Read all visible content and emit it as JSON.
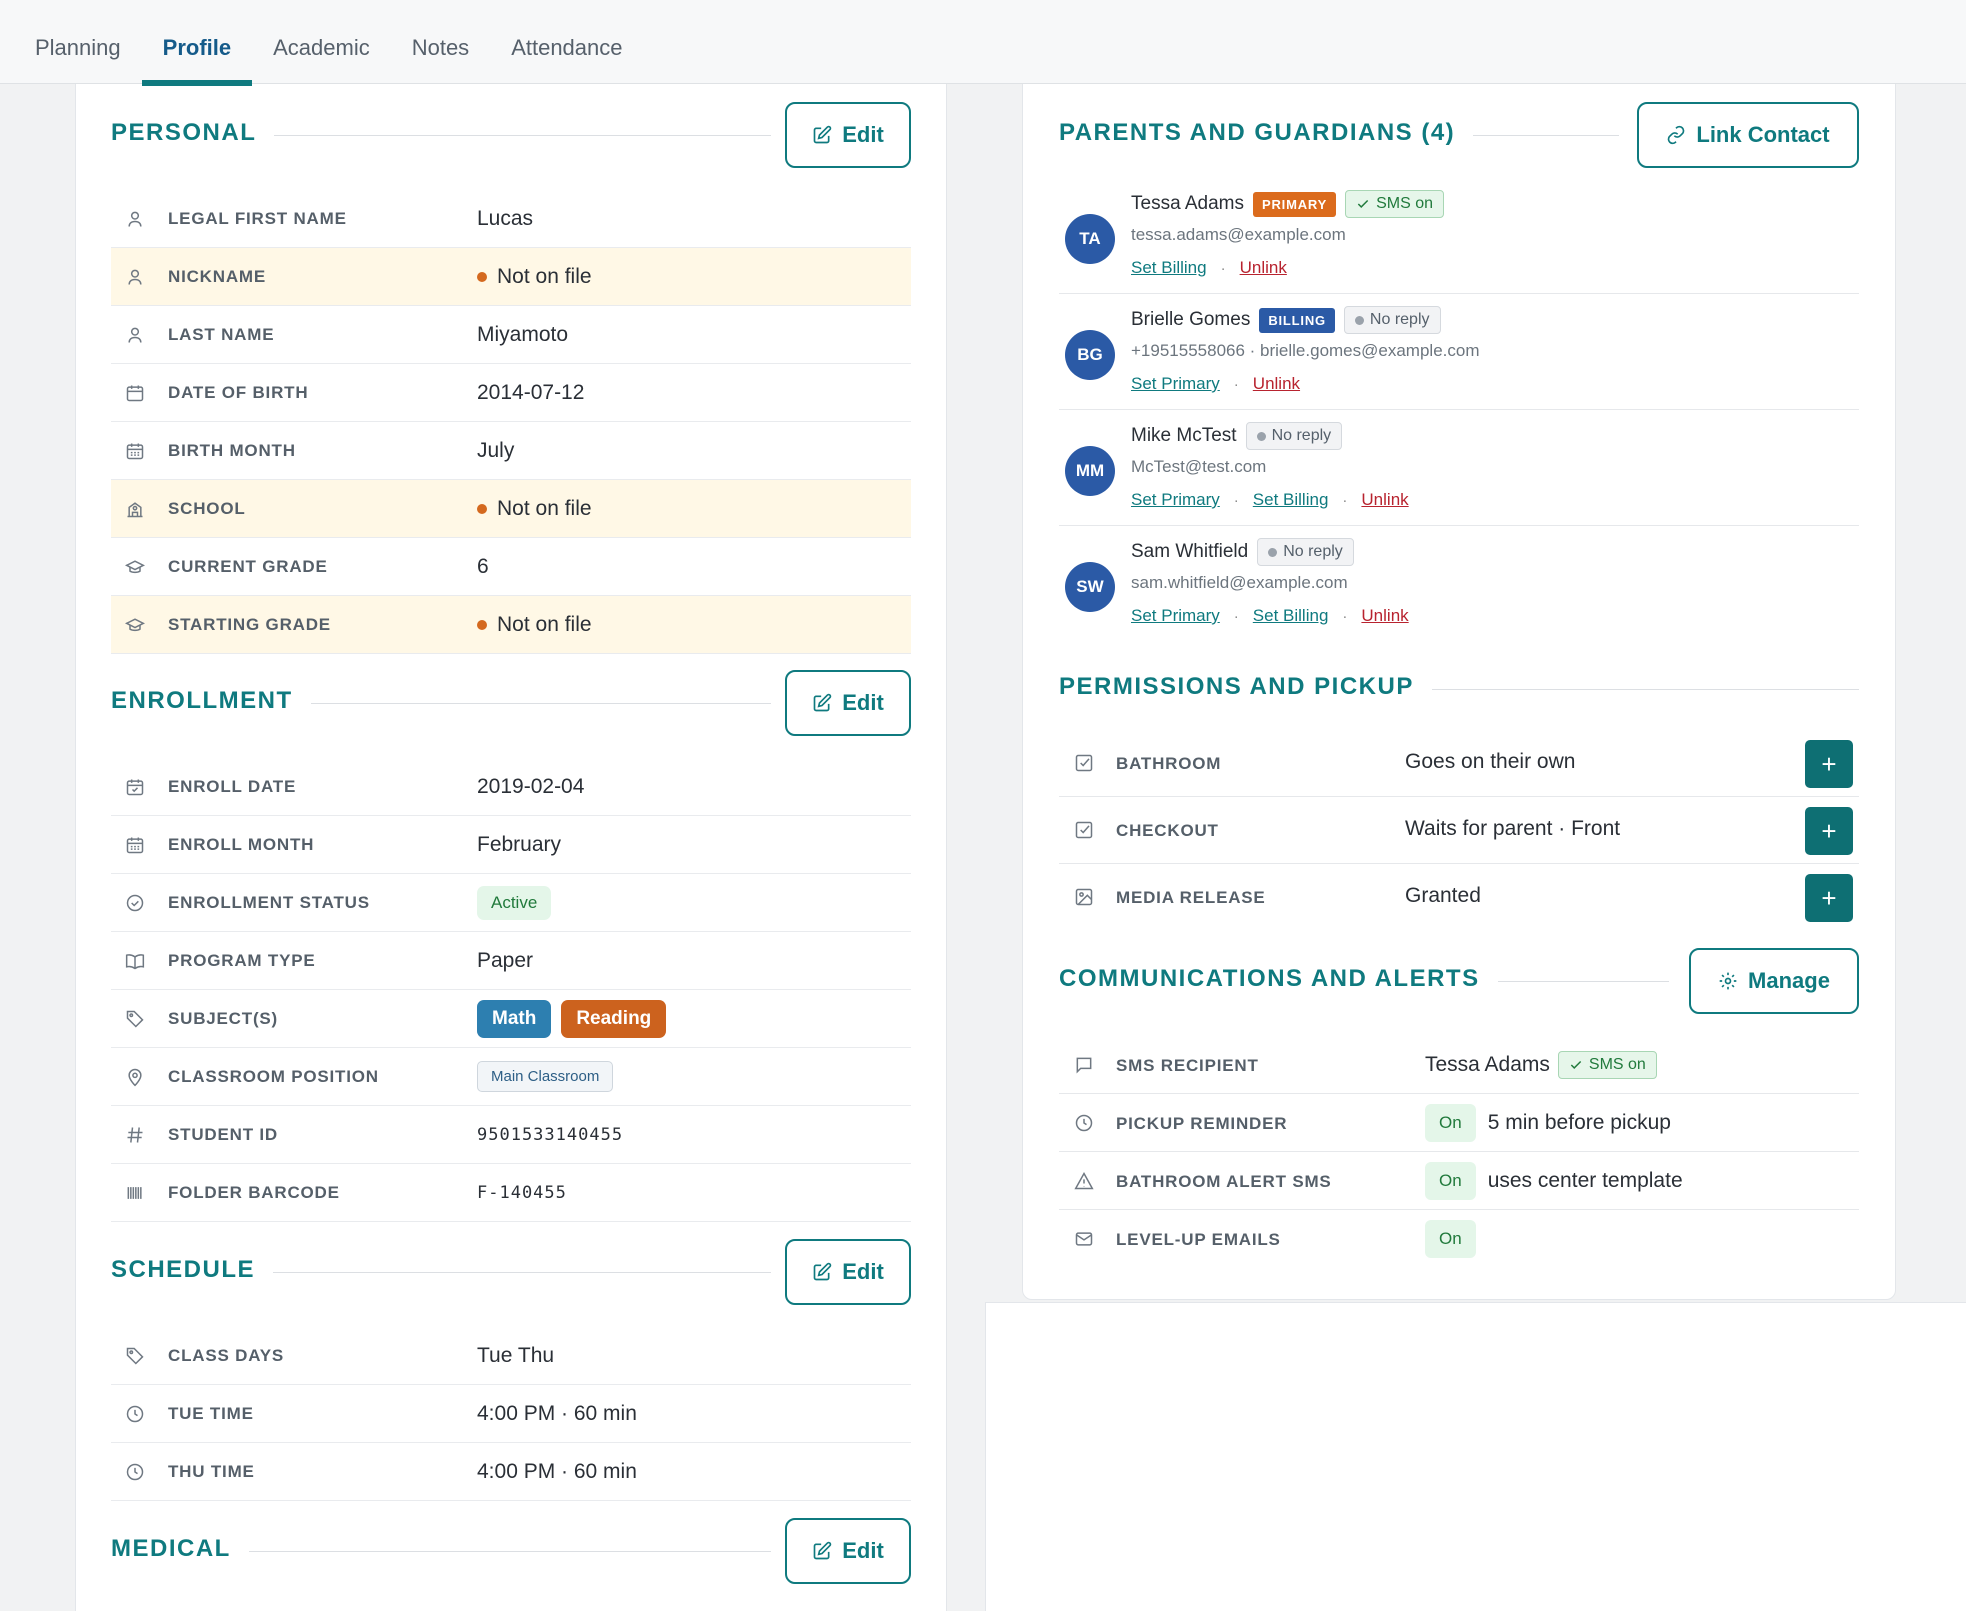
{
  "tabs": [
    {
      "label": "Planning"
    },
    {
      "label": "Profile"
    },
    {
      "label": "Academic"
    },
    {
      "label": "Notes"
    },
    {
      "label": "Attendance"
    }
  ],
  "edit_label": "Edit",
  "not_on_file": "Not on file",
  "personal": {
    "title": "PERSONAL",
    "rows": [
      {
        "label": "LEGAL FIRST NAME",
        "value": "Lucas"
      },
      {
        "label": "NICKNAME"
      },
      {
        "label": "LAST NAME",
        "value": "Miyamoto"
      },
      {
        "label": "DATE OF BIRTH",
        "value": "2014-07-12"
      },
      {
        "label": "BIRTH MONTH",
        "value": "July"
      },
      {
        "label": "SCHOOL"
      },
      {
        "label": "CURRENT GRADE",
        "value": "6"
      },
      {
        "label": "STARTING GRADE"
      }
    ]
  },
  "enrollment": {
    "title": "ENROLLMENT",
    "rows": [
      {
        "label": "ENROLL DATE",
        "value": "2019-02-04"
      },
      {
        "label": "ENROLL MONTH",
        "value": "February"
      },
      {
        "label": "ENROLLMENT STATUS",
        "value": "Active"
      },
      {
        "label": "PROGRAM TYPE",
        "value": "Paper"
      },
      {
        "label": "SUBJECT(S)",
        "values": [
          "Math",
          "Reading"
        ]
      },
      {
        "label": "CLASSROOM POSITION",
        "value": "Main Classroom"
      },
      {
        "label": "STUDENT ID",
        "value": "9501533140455"
      },
      {
        "label": "FOLDER BARCODE",
        "value": "F-140455"
      }
    ]
  },
  "schedule": {
    "title": "SCHEDULE",
    "rows": [
      {
        "label": "CLASS DAYS",
        "value": "Tue Thu"
      },
      {
        "label": "TUE TIME",
        "value": "4:00 PM · 60 min"
      },
      {
        "label": "THU TIME",
        "value": "4:00 PM · 60 min"
      }
    ]
  },
  "medical": {
    "title": "MEDICAL"
  },
  "guardians": {
    "title": "PARENTS AND GUARDIANS (4)",
    "link_label": "Link Contact",
    "sms_on": "SMS on",
    "no_reply": "No reply",
    "primary_badge": "PRIMARY",
    "billing_badge": "BILLING",
    "set_billing": "Set Billing",
    "set_primary": "Set Primary",
    "unlink": "Unlink",
    "sep": "·",
    "list": [
      {
        "initials": "TA",
        "name": "Tessa Adams",
        "contact": "tessa.adams@example.com"
      },
      {
        "initials": "BG",
        "name": "Brielle Gomes",
        "contact": "+19515558066 · brielle.gomes@example.com"
      },
      {
        "initials": "MM",
        "name": "Mike McTest",
        "contact": "McTest@test.com"
      },
      {
        "initials": "SW",
        "name": "Sam Whitfield",
        "contact": "sam.whitfield@example.com"
      }
    ]
  },
  "permissions": {
    "title": "PERMISSIONS AND PICKUP",
    "add_symbol": "+",
    "rows": [
      {
        "label": "BATHROOM",
        "value": "Goes on their own"
      },
      {
        "label": "CHECKOUT",
        "value": "Waits for parent · Front"
      },
      {
        "label": "MEDIA RELEASE",
        "value": "Granted"
      }
    ]
  },
  "communications": {
    "title": "COMMUNICATIONS AND ALERTS",
    "manage_label": "Manage",
    "on_label": "On",
    "rows": [
      {
        "label": "SMS RECIPIENT",
        "value": "Tessa Adams",
        "badge": "SMS on"
      },
      {
        "label": "PICKUP REMINDER",
        "value": "5 min before pickup"
      },
      {
        "label": "BATHROOM ALERT SMS",
        "value": "uses center template"
      },
      {
        "label": "LEVEL-UP EMAILS"
      }
    ]
  },
  "colors": {
    "accent": "#0f7a7f",
    "warning_row": "#fff8e6",
    "primary_badge": "#db6b1d",
    "billing_badge": "#2b5aa6",
    "avatar": "#2b5aa6"
  }
}
